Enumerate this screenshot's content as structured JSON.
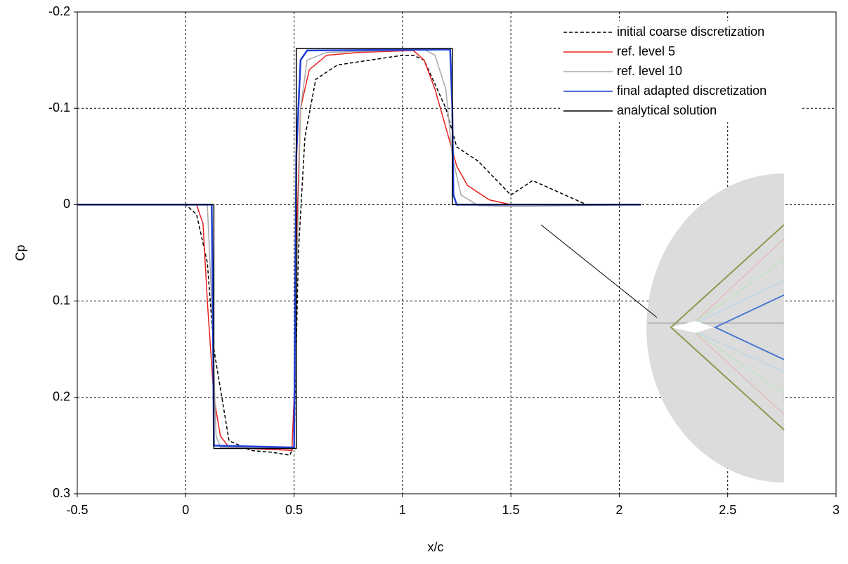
{
  "chart_data": {
    "type": "line",
    "x_label": "x/c",
    "y_label": "Cp",
    "xlim": [
      -0.5,
      3
    ],
    "ylim": [
      -0.2,
      0.3
    ],
    "y_inverted": true,
    "xticks": [
      -0.5,
      0,
      0.5,
      1,
      1.5,
      2,
      2.5,
      3
    ],
    "yticks": [
      -0.2,
      -0.1,
      0,
      0.1,
      0.2,
      0.3
    ],
    "grid": true,
    "legend": "upper right",
    "series": [
      {
        "name": "initial coarse discretization",
        "color": "#000000",
        "dashed": true,
        "x": [
          -0.5,
          0,
          0.05,
          0.1,
          0.13,
          0.2,
          0.3,
          0.4,
          0.48,
          0.5,
          0.52,
          0.55,
          0.6,
          0.7,
          0.85,
          1.0,
          1.05,
          1.1,
          1.2,
          1.25,
          1.35,
          1.5,
          1.6,
          1.75,
          1.85,
          2.1
        ],
        "values": [
          0,
          0,
          0.01,
          0.06,
          0.15,
          0.245,
          0.255,
          0.257,
          0.26,
          0.25,
          0.05,
          -0.07,
          -0.13,
          -0.145,
          -0.15,
          -0.155,
          -0.155,
          -0.15,
          -0.1,
          -0.06,
          -0.045,
          -0.01,
          -0.025,
          -0.01,
          0,
          0
        ]
      },
      {
        "name": "ref. level 5",
        "color": "#e8201c",
        "dashed": false,
        "x": [
          -0.5,
          0.05,
          0.08,
          0.1,
          0.13,
          0.16,
          0.2,
          0.49,
          0.5,
          0.51,
          0.53,
          0.57,
          0.65,
          0.8,
          1.05,
          1.1,
          1.15,
          1.2,
          1.25,
          1.3,
          1.4,
          1.5,
          2.1
        ],
        "values": [
          0,
          0,
          0.02,
          0.1,
          0.2,
          0.24,
          0.252,
          0.255,
          0.2,
          0.05,
          -0.1,
          -0.14,
          -0.155,
          -0.158,
          -0.16,
          -0.15,
          -0.12,
          -0.08,
          -0.04,
          -0.02,
          -0.005,
          0,
          0
        ]
      },
      {
        "name": "ref. level 10",
        "color": "#a8a8a8",
        "dashed": false,
        "x": [
          -0.5,
          0.1,
          0.12,
          0.14,
          0.16,
          0.5,
          0.51,
          0.53,
          0.56,
          0.65,
          1.1,
          1.15,
          1.2,
          1.23,
          1.27,
          1.35,
          1.5,
          2.1
        ],
        "values": [
          0,
          0,
          0.1,
          0.24,
          0.252,
          0.252,
          0.1,
          -0.1,
          -0.15,
          -0.158,
          -0.161,
          -0.155,
          -0.12,
          -0.05,
          -0.01,
          0.001,
          0.002,
          0
        ]
      },
      {
        "name": "final adapted discretization",
        "color": "#1f3fd8",
        "dashed": false,
        "x": [
          -0.5,
          0.12,
          0.125,
          0.13,
          0.5,
          0.505,
          0.51,
          0.53,
          0.56,
          1.22,
          1.23,
          1.235,
          1.25,
          2.1
        ],
        "values": [
          0,
          0,
          0.1,
          0.25,
          0.252,
          0.1,
          -0.05,
          -0.15,
          -0.16,
          -0.161,
          -0.1,
          -0.01,
          0,
          0
        ]
      },
      {
        "name": "analytical solution",
        "color": "#000000",
        "dashed": false,
        "x": [
          -0.5,
          0.13,
          0.13,
          0.51,
          0.51,
          1.23,
          1.23,
          2.1
        ],
        "values": [
          0,
          0,
          0.253,
          0.253,
          -0.162,
          -0.162,
          0,
          0
        ]
      }
    ]
  }
}
